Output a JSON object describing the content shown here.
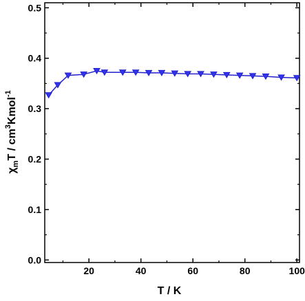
{
  "chart_data": {
    "type": "line",
    "xlabel": "T / K",
    "ylabel": {
      "chi": "χ",
      "sub": "m",
      "rest1": "T / cm",
      "sup1": "3",
      "rest2": "Kmol",
      "sup2": "-1"
    },
    "xlim": [
      3,
      101
    ],
    "ylim": [
      -0.005,
      0.51
    ],
    "xticks": [
      20,
      40,
      60,
      80,
      100
    ],
    "yticks": [
      0.0,
      0.1,
      0.2,
      0.3,
      0.4,
      0.5
    ],
    "xtick_labels": [
      "20",
      "40",
      "60",
      "80",
      "100"
    ],
    "ytick_labels": [
      "0.0",
      "0.1",
      "0.2",
      "0.3",
      "0.4",
      "0.5"
    ],
    "grid": false,
    "marker": "triangle-down",
    "colors": {
      "series": "#2222cc",
      "marker_fill": "#3333ee",
      "axes": "#000000"
    },
    "series": [
      {
        "x": [
          4.5,
          8,
          12,
          18,
          23,
          26,
          33,
          38,
          43,
          48,
          53,
          58,
          63,
          68,
          73,
          78,
          83,
          88,
          94,
          100
        ],
        "y": [
          0.327,
          0.347,
          0.366,
          0.368,
          0.375,
          0.372,
          0.372,
          0.372,
          0.371,
          0.371,
          0.37,
          0.369,
          0.369,
          0.368,
          0.367,
          0.366,
          0.365,
          0.364,
          0.362,
          0.361
        ]
      }
    ]
  }
}
